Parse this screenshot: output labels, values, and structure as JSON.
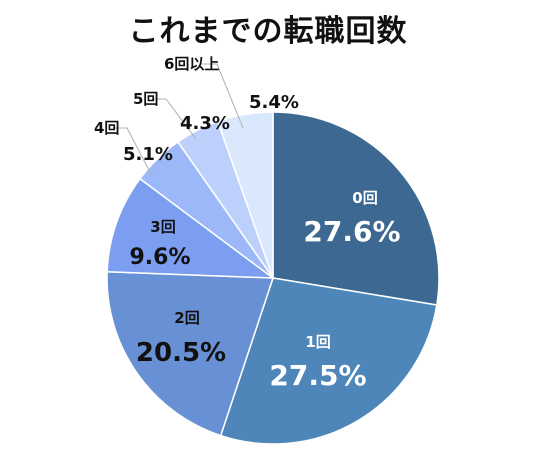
{
  "chart_data": {
    "type": "pie",
    "title": "これまでの転職回数",
    "categories": [
      "0回",
      "1回",
      "2回",
      "3回",
      "4回",
      "5回",
      "6回以上"
    ],
    "values": [
      27.6,
      27.5,
      20.5,
      9.6,
      5.1,
      4.3,
      5.4
    ],
    "value_labels": [
      "27.6%",
      "27.5%",
      "20.5%",
      "9.6%",
      "5.1%",
      "4.3%",
      "5.4%"
    ],
    "colors": [
      "#3d6892",
      "#4f86ba",
      "#6890d4",
      "#7c9ef0",
      "#9db8f8",
      "#bcd0fb",
      "#d9e8fd"
    ],
    "legend": "none"
  }
}
